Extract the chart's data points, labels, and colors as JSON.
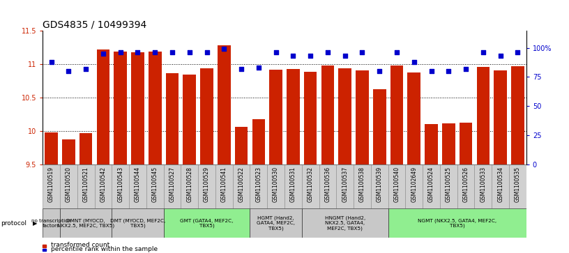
{
  "title": "GDS4835 / 10499394",
  "samples": [
    "GSM1100519",
    "GSM1100520",
    "GSM1100521",
    "GSM1100542",
    "GSM1100543",
    "GSM1100544",
    "GSM1100545",
    "GSM1100527",
    "GSM1100528",
    "GSM1100529",
    "GSM1100541",
    "GSM1100522",
    "GSM1100523",
    "GSM1100530",
    "GSM1100531",
    "GSM1100532",
    "GSM1100536",
    "GSM1100537",
    "GSM1100538",
    "GSM1100539",
    "GSM1100540",
    "GSM1102649",
    "GSM1100524",
    "GSM1100525",
    "GSM1100526",
    "GSM1100533",
    "GSM1100534",
    "GSM1100535"
  ],
  "bar_values": [
    9.98,
    9.87,
    9.97,
    11.21,
    11.18,
    11.17,
    11.18,
    10.86,
    10.84,
    10.93,
    11.28,
    10.06,
    10.18,
    10.91,
    10.92,
    10.88,
    10.98,
    10.93,
    10.9,
    10.62,
    10.98,
    10.87,
    10.1,
    10.11,
    10.12,
    10.96,
    10.9,
    10.97
  ],
  "percentile_values": [
    88,
    80,
    82,
    95,
    96,
    96,
    96,
    96,
    96,
    96,
    99,
    82,
    83,
    96,
    93,
    93,
    96,
    93,
    96,
    80,
    96,
    88,
    80,
    80,
    82,
    96,
    93,
    96
  ],
  "groups": [
    {
      "label": "no transcription\nfactors",
      "indices": [
        0
      ],
      "color": "#c8c8c8"
    },
    {
      "label": "DMNT (MYOCD,\nNKX2.5, MEF2C, TBX5)",
      "indices": [
        1,
        2,
        3
      ],
      "color": "#c8c8c8"
    },
    {
      "label": "DMT (MYOCD, MEF2C,\nTBX5)",
      "indices": [
        4,
        5,
        6
      ],
      "color": "#c8c8c8"
    },
    {
      "label": "GMT (GATA4, MEF2C,\nTBX5)",
      "indices": [
        7,
        8,
        9,
        10,
        11
      ],
      "color": "#90ee90"
    },
    {
      "label": "HGMT (Hand2,\nGATA4, MEF2C,\nTBX5)",
      "indices": [
        12,
        13,
        14
      ],
      "color": "#c8c8c8"
    },
    {
      "label": "HNGMT (Hand2,\nNKX2.5, GATA4,\nMEF2C, TBX5)",
      "indices": [
        15,
        16,
        17,
        18,
        19
      ],
      "color": "#c8c8c8"
    },
    {
      "label": "NGMT (NKX2.5, GATA4, MEF2C,\nTBX5)",
      "indices": [
        20,
        21,
        22,
        23,
        24,
        25,
        26,
        27
      ],
      "color": "#90ee90"
    }
  ],
  "ylim": [
    9.5,
    11.5
  ],
  "yticks": [
    9.5,
    10.0,
    10.5,
    11.0,
    11.5
  ],
  "ytick_labels": [
    "9.5",
    "10",
    "10.5",
    "11",
    "11.5"
  ],
  "right_yticks": [
    0,
    25,
    50,
    75,
    100
  ],
  "right_ytick_labels": [
    "0",
    "25",
    "50",
    "75",
    "100%"
  ],
  "bar_color": "#cc2200",
  "dot_color": "#0000cc",
  "bg_color": "#ffffff",
  "title_fontsize": 10,
  "tick_fontsize": 7,
  "sample_fontsize": 5.5,
  "label_color_left": "#cc2200",
  "label_color_right": "#0000cc",
  "grid_yticks": [
    10.0,
    10.5,
    11.0
  ],
  "dotted_line_color": "#000000"
}
